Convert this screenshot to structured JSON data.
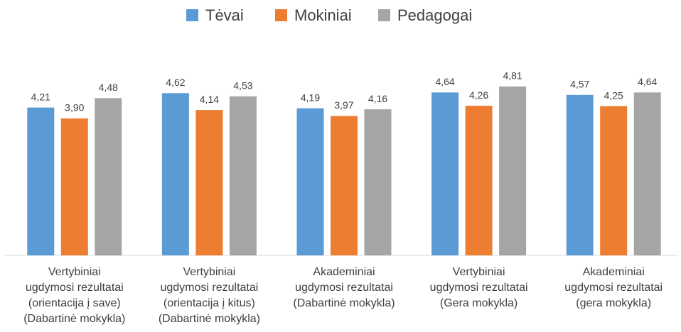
{
  "chart_data": {
    "type": "bar",
    "categories": [
      "Vertybiniai\nugdymosi rezultatai\n(orientacija į save)\n(Dabartinė mokykla)",
      "Vertybiniai\nugdymosi rezultatai\n(orientacija į kitus)\n(Dabartinė mokykla)",
      "Akademiniai\nugdymosi rezultatai\n(Dabartinė mokykla)",
      "Vertybiniai\nugdymosi rezultatai\n(Gera mokykla)",
      "Akademiniai\nugdymosi rezultatai\n(gera mokykla)"
    ],
    "series": [
      {
        "name": "Tėvai",
        "color": "#5b9bd5",
        "values": [
          4.21,
          4.62,
          4.19,
          4.64,
          4.57
        ],
        "value_labels": [
          "4,21",
          "4,62",
          "4,19",
          "4,64",
          "4,57"
        ]
      },
      {
        "name": "Mokiniai",
        "color": "#ed7d31",
        "values": [
          3.9,
          4.14,
          3.97,
          4.26,
          4.25
        ],
        "value_labels": [
          "3,90",
          "4,14",
          "3,97",
          "4,26",
          "4,25"
        ]
      },
      {
        "name": "Pedagogai",
        "color": "#a5a5a5",
        "values": [
          4.48,
          4.53,
          4.16,
          4.81,
          4.64
        ],
        "value_labels": [
          "4,48",
          "4,53",
          "4,16",
          "4,81",
          "4,64"
        ]
      }
    ],
    "ylim": [
      0,
      5
    ],
    "legend": "top"
  }
}
